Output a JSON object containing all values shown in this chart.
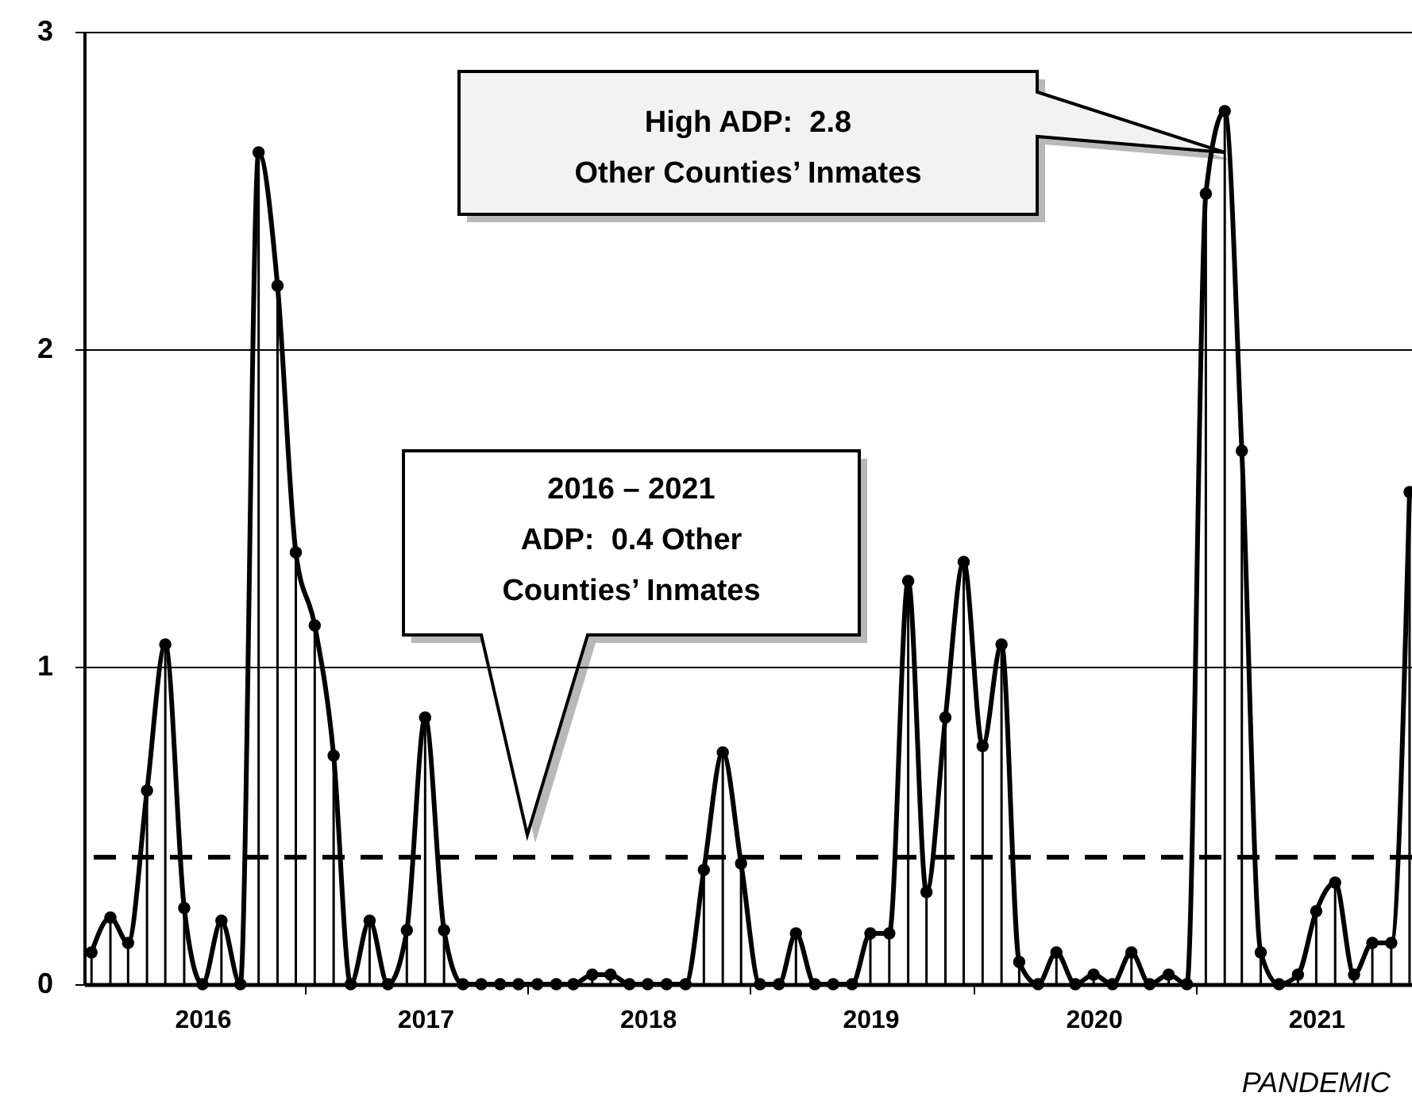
{
  "chart_data": {
    "type": "line",
    "x": [
      "2016-01",
      "2016-02",
      "2016-03",
      "2016-04",
      "2016-05",
      "2016-06",
      "2016-07",
      "2016-08",
      "2016-09",
      "2016-10",
      "2016-11",
      "2016-12",
      "2017-01",
      "2017-02",
      "2017-03",
      "2017-04",
      "2017-05",
      "2017-06",
      "2017-07",
      "2017-08",
      "2017-09",
      "2017-10",
      "2017-11",
      "2017-12",
      "2018-01",
      "2018-02",
      "2018-03",
      "2018-04",
      "2018-05",
      "2018-06",
      "2018-07",
      "2018-08",
      "2018-09",
      "2018-10",
      "2018-11",
      "2018-12",
      "2019-01",
      "2019-02",
      "2019-03",
      "2019-04",
      "2019-05",
      "2019-06",
      "2019-07",
      "2019-08",
      "2019-09",
      "2019-10",
      "2019-11",
      "2019-12",
      "2020-01",
      "2020-02",
      "2020-03",
      "2020-04",
      "2020-05",
      "2020-06",
      "2020-07",
      "2020-08",
      "2020-09",
      "2020-10",
      "2020-11",
      "2020-12",
      "2021-01",
      "2021-02",
      "2021-03",
      "2021-04",
      "2021-05",
      "2021-06",
      "2021-07",
      "2021-08",
      "2021-09",
      "2021-10",
      "2021-11",
      "2021-12"
    ],
    "series": [
      {
        "color": "#000000",
        "line_style": "solid",
        "values": [
          0.1,
          0.21,
          0.13,
          0.61,
          1.07,
          0.24,
          0,
          0.2,
          0,
          2.62,
          2.2,
          1.36,
          1.13,
          0.72,
          0,
          0.2,
          0,
          0.17,
          0.84,
          0.17,
          0,
          0,
          0,
          0,
          0,
          0,
          0,
          0.03,
          0.03,
          0,
          0,
          0,
          0,
          0.36,
          0.73,
          0.38,
          0,
          0,
          0.16,
          0,
          0,
          0,
          0.16,
          0.16,
          1.27,
          0.29,
          0.84,
          1.33,
          0.75,
          1.07,
          0.07,
          0,
          0.1,
          0,
          0.03,
          0,
          0.1,
          0,
          0.03,
          0,
          2.49,
          2.75,
          1.68,
          0.1,
          0,
          0.03,
          0.23,
          0.32,
          0.03,
          0.13,
          0.13,
          1.55
        ]
      },
      {
        "type": "lollipop",
        "color": "#000000",
        "marker": "circle",
        "values": [
          0.1,
          0.21,
          0.13,
          0.61,
          1.07,
          0.24,
          0,
          0.2,
          0,
          2.62,
          2.2,
          1.36,
          1.13,
          0.72,
          0,
          0.2,
          0,
          0.17,
          0.84,
          0.17,
          0,
          0,
          0,
          0,
          0,
          0,
          0,
          0.03,
          0.03,
          0,
          0,
          0,
          0,
          0.36,
          0.73,
          0.38,
          0,
          0,
          0.16,
          0,
          0,
          0,
          0.16,
          0.16,
          1.27,
          0.29,
          0.84,
          1.33,
          0.75,
          1.07,
          0.07,
          0,
          0.1,
          0,
          0.03,
          0,
          0.1,
          0,
          0.03,
          0,
          2.49,
          2.75,
          1.68,
          0.1,
          0,
          0.03,
          0.23,
          0.32,
          0.03,
          0.13,
          0.13,
          1.55
        ]
      }
    ],
    "xlim": [
      "2015-12-20",
      "2021-12-05"
    ],
    "xticks": [
      {
        "value": "2016-07-01",
        "label": "2016"
      },
      {
        "value": "2017-07-01",
        "label": "2017"
      },
      {
        "value": "2018-07-01",
        "label": "2018"
      },
      {
        "value": "2019-07-01",
        "label": "2019"
      },
      {
        "value": "2020-07-01",
        "label": "2020"
      },
      {
        "value": "2021-07-01",
        "label": "2021"
      },
      {
        "value": "2016-12-16",
        "label": null
      },
      {
        "value": "2017-12-16",
        "label": null
      },
      {
        "value": "2018-12-16",
        "label": null
      },
      {
        "value": "2019-12-16",
        "label": null
      },
      {
        "value": "2020-12-16",
        "label": null
      }
    ],
    "ylim": [
      0,
      3
    ],
    "yticks": [
      0,
      1,
      2,
      3
    ],
    "grid": "y",
    "ref_lines": [
      {
        "axis": "y",
        "value": 0.4,
        "line_style": "dashed",
        "color": "#000000",
        "label": "2016 – 2021\nADP:  0.4 Other\nCounties’ Inmates"
      }
    ],
    "annotations": [
      "High ADP:  2.8\nOther Counties’ Inmates",
      "PANDEMIC"
    ]
  }
}
